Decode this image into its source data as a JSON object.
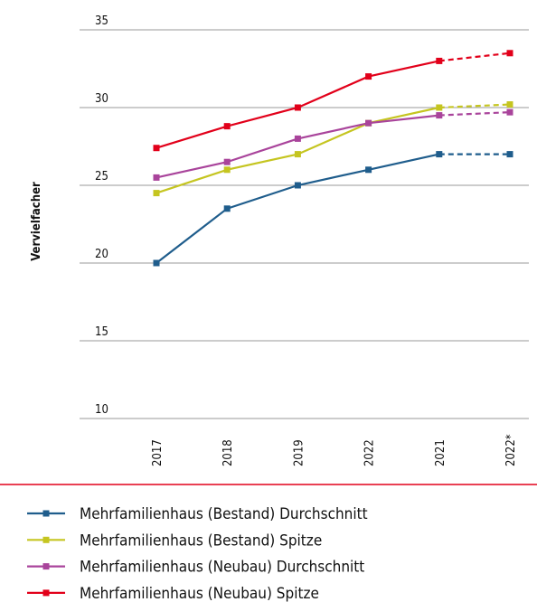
{
  "chart_data": {
    "type": "line",
    "y_axis_label": "Vervielfacher",
    "categories": [
      "2017",
      "2018",
      "2019",
      "2022",
      "2021",
      "2022*"
    ],
    "series": [
      {
        "name": "Mehrfamilienhaus (Bestand) Durchschnitt",
        "color": "#1f5d8c",
        "values": [
          20,
          23.5,
          25,
          26,
          27,
          27
        ]
      },
      {
        "name": "Mehrfamilienhaus (Bestand) Spitze",
        "color": "#c5c520",
        "values": [
          24.5,
          26,
          27,
          29,
          30,
          30.2
        ]
      },
      {
        "name": "Mehrfamilienhaus (Neubau) Durchschnitt",
        "color": "#a9449b",
        "values": [
          25.5,
          26.5,
          28,
          29,
          29.5,
          29.7
        ]
      },
      {
        "name": "Mehrfamilienhaus (Neubau) Spitze",
        "color": "#e2001a",
        "values": [
          27.4,
          28.8,
          30,
          32,
          33,
          33.5
        ]
      }
    ],
    "dashed_last_segment": true,
    "ylim": [
      10,
      35
    ],
    "yticks": [
      10,
      15,
      20,
      25,
      30,
      35
    ],
    "grid": true
  }
}
